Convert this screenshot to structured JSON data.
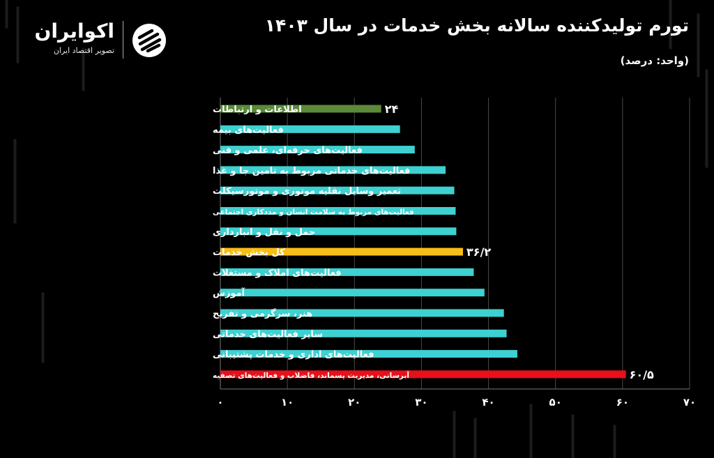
{
  "header": {
    "title": "تورم تولیدکننده سالانه بخش خدمات در سال ۱۴۰۳",
    "unit": "(واحد: درصد)"
  },
  "brand": {
    "name": "اکوایران",
    "tagline": "تصویر اقتصاد ایران"
  },
  "colors": {
    "background": "#000000",
    "default_bar": "#3ed1d1",
    "highlight_green": "#5a8a3a",
    "highlight_yellow": "#f7be17",
    "highlight_red": "#e8101a",
    "text": "#ffffff"
  },
  "chart_data": {
    "type": "bar",
    "orientation": "horizontal",
    "title": "تورم تولیدکننده سالانه بخش خدمات در سال ۱۴۰۳",
    "categories": [
      "اطلاعات و ارتباطات",
      "فعالیت‌های بیمه",
      "فعالیت‌های حرفه‌ای، علمی و فنی",
      "فعالیت‌های خدماتی مربوط به تامین جا و غذا",
      "تعمیر وسایل نقلیه موتوری و موتورسیکلت",
      "فعالیت‌های مربوط به سلامت انسان و مددکاری اجتماعی",
      "حمل و نقل و انبارداری",
      "کل بخش خدمات",
      "فعالیت‌های املاک و مستغلات",
      "آموزش",
      "هنر، سرگرمی و تفریح",
      "سایر فعالیت‌های خدماتی",
      "فعالیت‌های اداری و خدمات پشتیبانی",
      "آبرسانی، مدیریت پسماند، فاضلاب و فعالیت‌های تصفیه"
    ],
    "values": [
      24,
      26.8,
      29,
      33.6,
      34.9,
      35.1,
      35.2,
      36.2,
      37.8,
      39.4,
      42.3,
      42.7,
      44.3,
      60.5
    ],
    "bar_colors": [
      "#5a8a3a",
      "#3ed1d1",
      "#3ed1d1",
      "#3ed1d1",
      "#3ed1d1",
      "#3ed1d1",
      "#3ed1d1",
      "#f7be17",
      "#3ed1d1",
      "#3ed1d1",
      "#3ed1d1",
      "#3ed1d1",
      "#3ed1d1",
      "#e8101a"
    ],
    "data_labels": [
      "۲۴",
      "",
      "",
      "",
      "",
      "",
      "",
      "۳۶/۲",
      "",
      "",
      "",
      "",
      "",
      "۶۰/۵"
    ],
    "xlim": [
      0,
      70
    ],
    "xticks": [
      0,
      10,
      20,
      30,
      40,
      50,
      60,
      70
    ],
    "xtick_labels": [
      "۰",
      "۱۰",
      "۲۰",
      "۳۰",
      "۴۰",
      "۵۰",
      "۶۰",
      "۷۰"
    ],
    "grid": "vertical",
    "xlabel": "",
    "ylabel": ""
  }
}
